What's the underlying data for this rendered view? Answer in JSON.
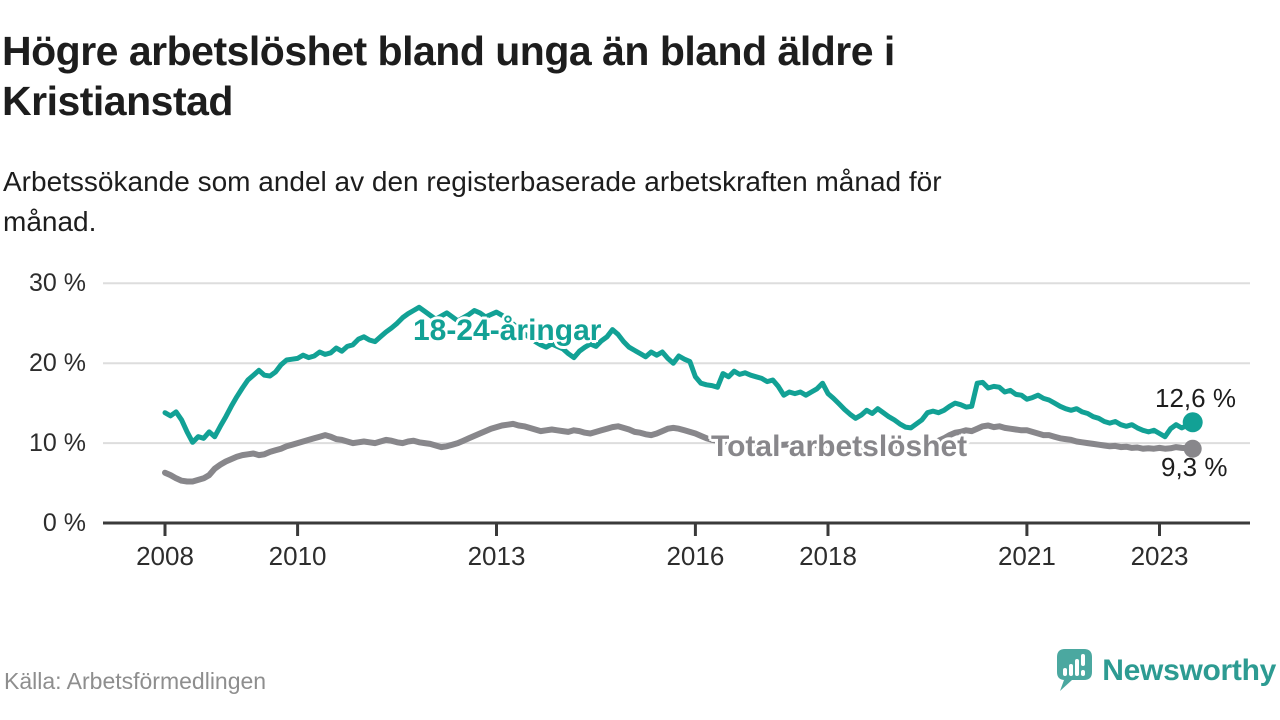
{
  "header": {
    "title_line1": "Högre arbetslöshet bland unga än bland äldre i",
    "title_line2": "Kristianstad",
    "subtitle_line1": "Arbetssökande som andel av den registerbaserade arbetskraften månad för",
    "subtitle_line2": "månad."
  },
  "chart_data": {
    "type": "line",
    "title": "Högre arbetslöshet bland unga än bland äldre i Kristianstad",
    "x_unit": "month",
    "x_range": [
      "2008-01",
      "2023-07"
    ],
    "ylim": [
      0,
      30
    ],
    "grid": "horizontal",
    "legend_position": "inline-labels",
    "y_axis": {
      "ticks": [
        {
          "value": 0,
          "label": "0 %"
        },
        {
          "value": 10,
          "label": "10 %"
        },
        {
          "value": 20,
          "label": "20 %"
        },
        {
          "value": 30,
          "label": "30 %"
        }
      ]
    },
    "x_axis": {
      "ticks": [
        {
          "year": 2008,
          "label": "2008"
        },
        {
          "year": 2010,
          "label": "2010"
        },
        {
          "year": 2013,
          "label": "2013"
        },
        {
          "year": 2016,
          "label": "2016"
        },
        {
          "year": 2018,
          "label": "2018"
        },
        {
          "year": 2021,
          "label": "2021"
        },
        {
          "year": 2023,
          "label": "2023"
        }
      ]
    },
    "style": {
      "grid_color": "#DDDDDD",
      "axis_color": "#3A3A3A"
    },
    "series": [
      {
        "name": "18-24-åringar",
        "color": "#12A195",
        "stroke_width": 5,
        "dot_radius": 10,
        "end_label": "12,6 %",
        "end_value": 12.6,
        "values": [
          13.8,
          13.4,
          13.9,
          12.9,
          11.4,
          10.1,
          10.8,
          10.6,
          11.4,
          10.8,
          12.1,
          13.3,
          14.6,
          15.8,
          16.9,
          17.9,
          18.5,
          19.1,
          18.5,
          18.4,
          18.9,
          19.8,
          20.4,
          20.5,
          20.6,
          21.0,
          20.7,
          20.9,
          21.4,
          21.1,
          21.3,
          21.9,
          21.5,
          22.1,
          22.3,
          23.0,
          23.3,
          22.9,
          22.7,
          23.3,
          23.9,
          24.4,
          25.0,
          25.7,
          26.2,
          26.6,
          27.0,
          26.5,
          26.0,
          25.5,
          25.9,
          26.3,
          25.8,
          25.3,
          25.7,
          26.1,
          26.6,
          26.3,
          25.8,
          26.1,
          26.4,
          26.0,
          25.5,
          24.9,
          24.3,
          23.7,
          23.2,
          22.7,
          22.3,
          22.0,
          22.4,
          22.1,
          21.8,
          21.2,
          20.7,
          21.5,
          22.0,
          22.4,
          22.1,
          22.8,
          23.3,
          24.2,
          23.6,
          22.7,
          22.0,
          21.6,
          21.2,
          20.8,
          21.4,
          21.0,
          21.4,
          20.6,
          20.0,
          20.9,
          20.5,
          20.2,
          18.3,
          17.5,
          17.3,
          17.2,
          17.0,
          18.7,
          18.3,
          19.0,
          18.6,
          18.8,
          18.5,
          18.3,
          18.1,
          17.7,
          17.9,
          17.1,
          16.0,
          16.4,
          16.2,
          16.4,
          16.0,
          16.4,
          16.8,
          17.5,
          16.2,
          15.6,
          14.9,
          14.2,
          13.6,
          13.1,
          13.5,
          14.1,
          13.7,
          14.3,
          13.8,
          13.3,
          12.9,
          12.4,
          12.0,
          11.9,
          12.4,
          12.9,
          13.8,
          14.0,
          13.8,
          14.1,
          14.6,
          15.0,
          14.8,
          14.5,
          14.6,
          17.5,
          17.6,
          16.9,
          17.1,
          17.0,
          16.4,
          16.6,
          16.1,
          16.0,
          15.5,
          15.7,
          16.0,
          15.6,
          15.4,
          15.0,
          14.6,
          14.3,
          14.1,
          14.3,
          13.9,
          13.7,
          13.3,
          13.1,
          12.7,
          12.5,
          12.7,
          12.3,
          12.1,
          12.3,
          11.9,
          11.6,
          11.4,
          11.6,
          11.2,
          10.8,
          11.8,
          12.3,
          11.9,
          12.2,
          12.6
        ]
      },
      {
        "name": "Total arbetslöshet",
        "color": "#88878B",
        "stroke_width": 6,
        "dot_radius": 9,
        "end_label": "9,3 %",
        "end_value": 9.3,
        "values": [
          6.3,
          6.0,
          5.6,
          5.3,
          5.2,
          5.2,
          5.4,
          5.6,
          6.0,
          6.8,
          7.3,
          7.7,
          8.0,
          8.3,
          8.5,
          8.6,
          8.7,
          8.5,
          8.6,
          8.9,
          9.1,
          9.3,
          9.6,
          9.8,
          10.0,
          10.2,
          10.4,
          10.6,
          10.8,
          11.0,
          10.8,
          10.5,
          10.4,
          10.2,
          10.0,
          10.1,
          10.2,
          10.1,
          10.0,
          10.2,
          10.4,
          10.3,
          10.1,
          10.0,
          10.2,
          10.3,
          10.1,
          10.0,
          9.9,
          9.7,
          9.5,
          9.6,
          9.8,
          10.0,
          10.3,
          10.6,
          10.9,
          11.2,
          11.5,
          11.8,
          12.0,
          12.2,
          12.3,
          12.4,
          12.2,
          12.1,
          11.9,
          11.7,
          11.5,
          11.6,
          11.7,
          11.6,
          11.5,
          11.4,
          11.6,
          11.5,
          11.3,
          11.2,
          11.4,
          11.6,
          11.8,
          12.0,
          12.1,
          11.9,
          11.7,
          11.4,
          11.3,
          11.1,
          11.0,
          11.2,
          11.5,
          11.8,
          11.9,
          11.8,
          11.6,
          11.4,
          11.2,
          10.9,
          10.6,
          10.4,
          10.3,
          10.2,
          10.1,
          10.0,
          10.0,
          9.95,
          9.9,
          9.9,
          9.9,
          9.85,
          9.8,
          9.75,
          9.8,
          9.85,
          9.8,
          9.7,
          9.65,
          9.7,
          9.75,
          9.8,
          9.75,
          9.7,
          9.6,
          9.55,
          9.6,
          9.65,
          9.6,
          9.5,
          9.55,
          9.6,
          9.65,
          9.7,
          9.7,
          9.6,
          9.55,
          9.5,
          9.6,
          9.7,
          9.8,
          10.0,
          10.3,
          10.6,
          11.0,
          11.3,
          11.4,
          11.6,
          11.5,
          11.8,
          12.1,
          12.2,
          12.0,
          12.1,
          11.9,
          11.8,
          11.7,
          11.6,
          11.6,
          11.4,
          11.2,
          11.0,
          11.0,
          10.8,
          10.6,
          10.5,
          10.4,
          10.2,
          10.1,
          10.0,
          9.9,
          9.8,
          9.7,
          9.6,
          9.65,
          9.5,
          9.55,
          9.4,
          9.45,
          9.3,
          9.35,
          9.3,
          9.4,
          9.3,
          9.35,
          9.5,
          9.4,
          9.35,
          9.3
        ]
      }
    ]
  },
  "footer": {
    "source": "Källa: Arbetsförmedlingen",
    "brand": "Newsworthy",
    "brand_color": "#2D9B92",
    "bubble_color": "#4BA8A0"
  }
}
